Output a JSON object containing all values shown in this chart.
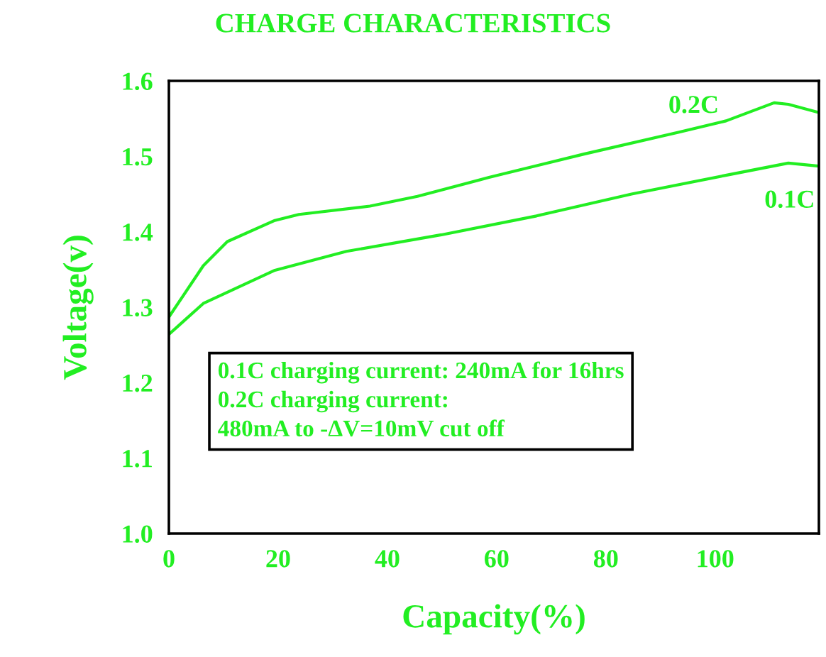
{
  "chart_data": {
    "type": "line",
    "title": "CHARGE CHARACTERISTICS",
    "xlabel": "Capacity(%)",
    "ylabel": "Voltage(v)",
    "xlim": [
      0,
      119
    ],
    "ylim": [
      1.0,
      1.6
    ],
    "xticks": [
      0,
      20,
      40,
      60,
      80,
      100
    ],
    "yticks": [
      {
        "value": 1.0,
        "label": "1.0"
      },
      1.1,
      1.2,
      1.3,
      1.4,
      1.5,
      1.6
    ],
    "grid": false,
    "legend": false,
    "marker": "none",
    "line_style": "solid",
    "series": [
      {
        "name": "0.2C",
        "color": "#22ee22",
        "x": [
          0,
          6.3,
          10.7,
          19.4,
          23.8,
          36.8,
          45.5,
          58.6,
          76,
          93.4,
          102,
          110.8,
          113.4,
          119
        ],
        "values": [
          1.287,
          1.355,
          1.387,
          1.415,
          1.423,
          1.434,
          1.447,
          1.472,
          1.503,
          1.532,
          1.547,
          1.571,
          1.569,
          1.558
        ]
      },
      {
        "name": "0.1C",
        "color": "#22ee22",
        "x": [
          0,
          6.3,
          19.4,
          32.5,
          49.9,
          67.3,
          84.7,
          102.1,
          113.4,
          119
        ],
        "values": [
          1.264,
          1.305,
          1.349,
          1.374,
          1.396,
          1.421,
          1.45,
          1.475,
          1.491,
          1.487
        ]
      }
    ],
    "annotations": [
      "0.1C charging current: 240mA for 16hrs\n0.2C charging current:\n480mA to -ΔV=10mV cut off"
    ]
  }
}
